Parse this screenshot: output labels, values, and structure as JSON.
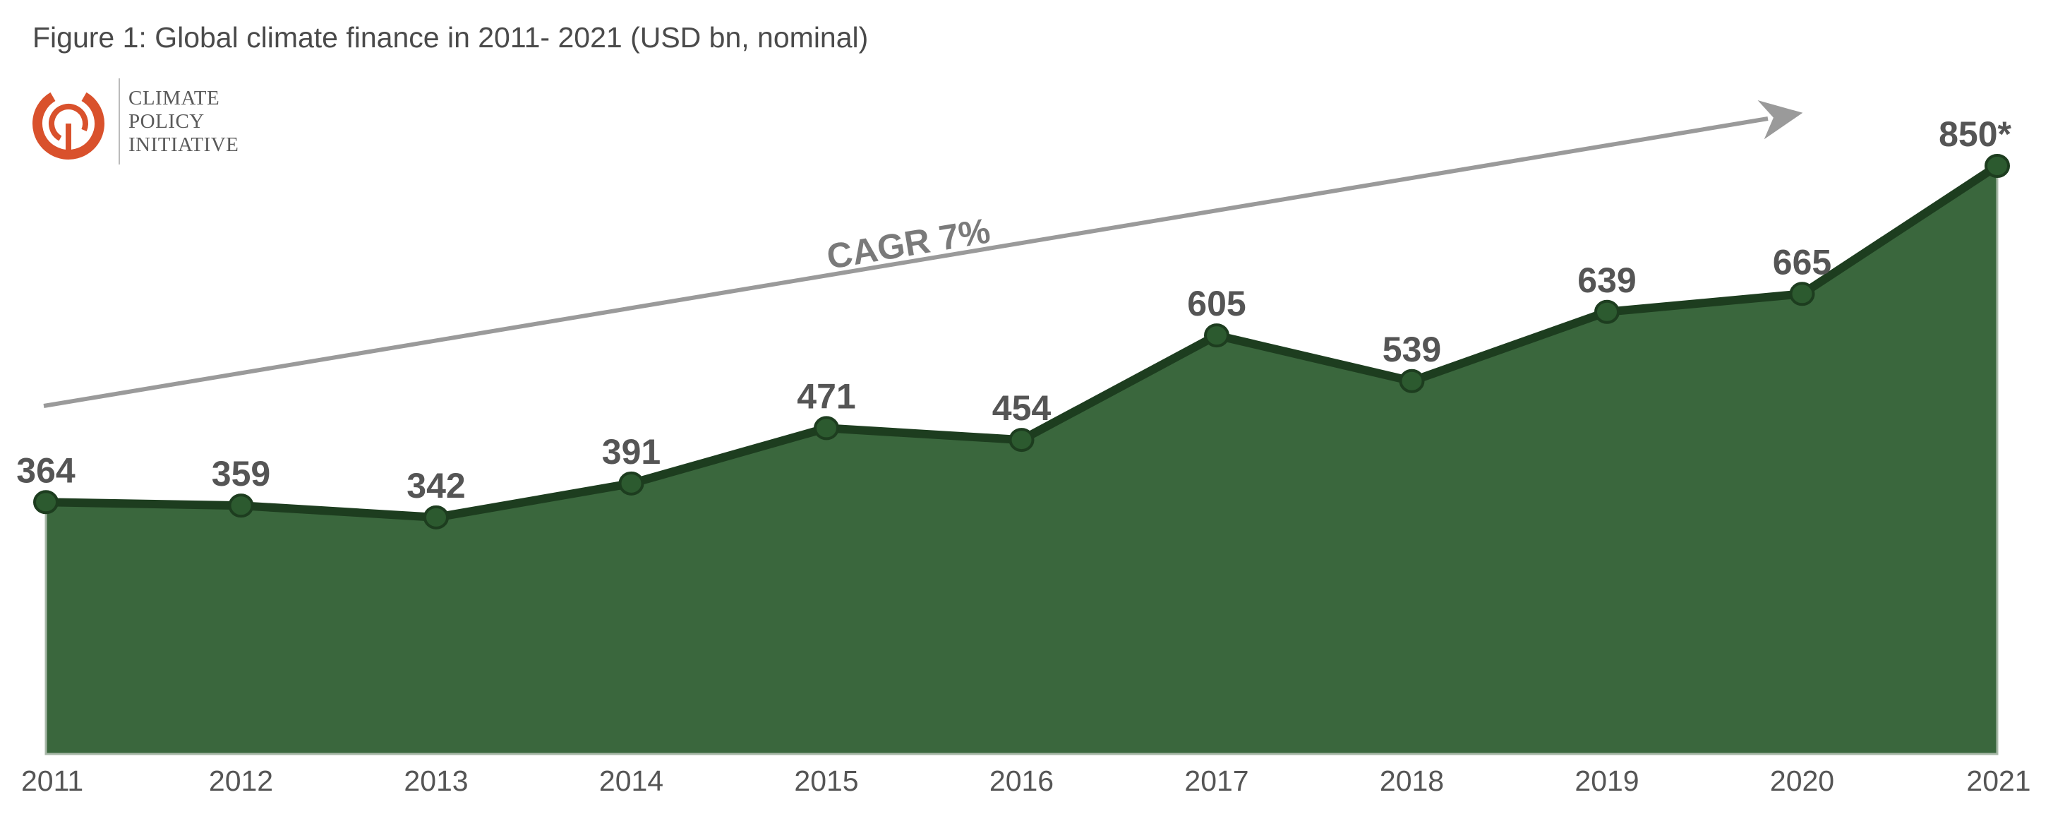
{
  "title": "Figure 1: Global climate finance in 2011- 2021 (USD bn, nominal)",
  "logo": {
    "line1": "CLIMATE",
    "line2": "POLICY",
    "line3": "INITIATIVE"
  },
  "annotation": {
    "cagr": "CAGR 7%"
  },
  "colors": {
    "area_fill": "#3a673d",
    "line": "#1d3d1f",
    "marker": "#2c5a2f",
    "labels": "#555555",
    "arrow": "#9a9a9a",
    "logo_orange": "#d9512c"
  },
  "chart_data": {
    "type": "area",
    "title": "Figure 1: Global climate finance in 2011- 2021 (USD bn, nominal)",
    "categories": [
      "2011",
      "2012",
      "2013",
      "2014",
      "2015",
      "2016",
      "2017",
      "2018",
      "2019",
      "2020",
      "2021"
    ],
    "values": [
      364,
      359,
      342,
      391,
      471,
      454,
      605,
      539,
      639,
      665,
      850
    ],
    "data_labels": [
      "364",
      "359",
      "342",
      "391",
      "471",
      "454",
      "605",
      "539",
      "639",
      "665",
      "850*"
    ],
    "ylim": [
      0,
      880
    ],
    "grid": false,
    "legend": "none",
    "markers": true
  }
}
